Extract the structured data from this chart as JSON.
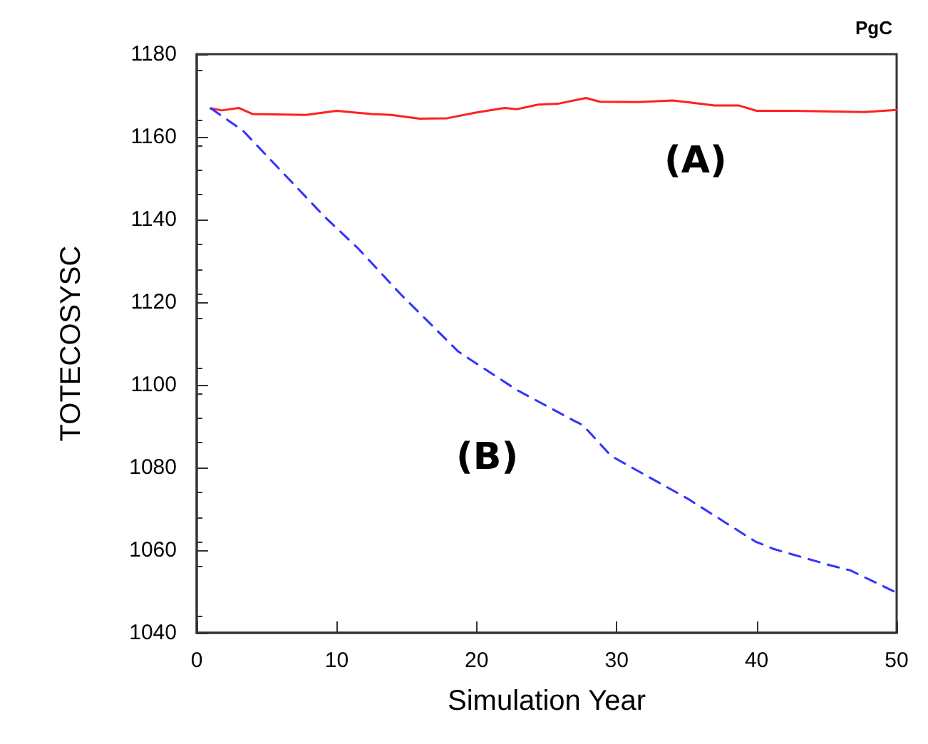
{
  "chart_data": {
    "type": "line",
    "title": "PgC",
    "xlabel": "Simulation Year",
    "ylabel": "TOTECOSYSC",
    "xlim": [
      0,
      50
    ],
    "xticks": [
      0,
      10,
      20,
      30,
      40,
      50
    ],
    "ylim": [
      1040,
      1180
    ],
    "yticks": [
      1040,
      1060,
      1080,
      1100,
      1120,
      1140,
      1160,
      1180
    ],
    "grid": false,
    "marker": "none",
    "series": [
      {
        "color": "#ff2020",
        "line_style": "solid",
        "x": [
          1,
          1.8,
          3,
          4,
          7.8,
          10,
          12.5,
          13.9,
          15.9,
          17.9,
          20,
          22,
          22.9,
          24.4,
          25.8,
          27.8,
          28.8,
          31.5,
          34,
          35,
          37,
          38.7,
          40,
          42.6,
          47.7,
          50
        ],
        "values": [
          1166.9,
          1166.4,
          1167,
          1165.5,
          1165.3,
          1166.3,
          1165.5,
          1165.3,
          1164.4,
          1164.5,
          1165.9,
          1167,
          1166.7,
          1167.8,
          1168,
          1169.4,
          1168.5,
          1168.4,
          1168.8,
          1168.4,
          1167.6,
          1167.6,
          1166.3,
          1166.3,
          1166,
          1166.5
        ]
      },
      {
        "color": "#3333ff",
        "line_style": "dashed",
        "x": [
          1,
          3.3,
          9.1,
          11.5,
          14.6,
          18.7,
          22.8,
          26.9,
          27.6,
          29.6,
          35.1,
          39.9,
          41.2,
          45.3,
          46.7,
          50
        ],
        "values": [
          1166.9,
          1161.5,
          1140.8,
          1133.1,
          1121.8,
          1108,
          1098.9,
          1091.4,
          1090.2,
          1082.8,
          1072.4,
          1062.1,
          1060.3,
          1056.3,
          1055.1,
          1049.7
        ]
      }
    ],
    "annotations": [
      "(A)",
      "(B)"
    ]
  }
}
